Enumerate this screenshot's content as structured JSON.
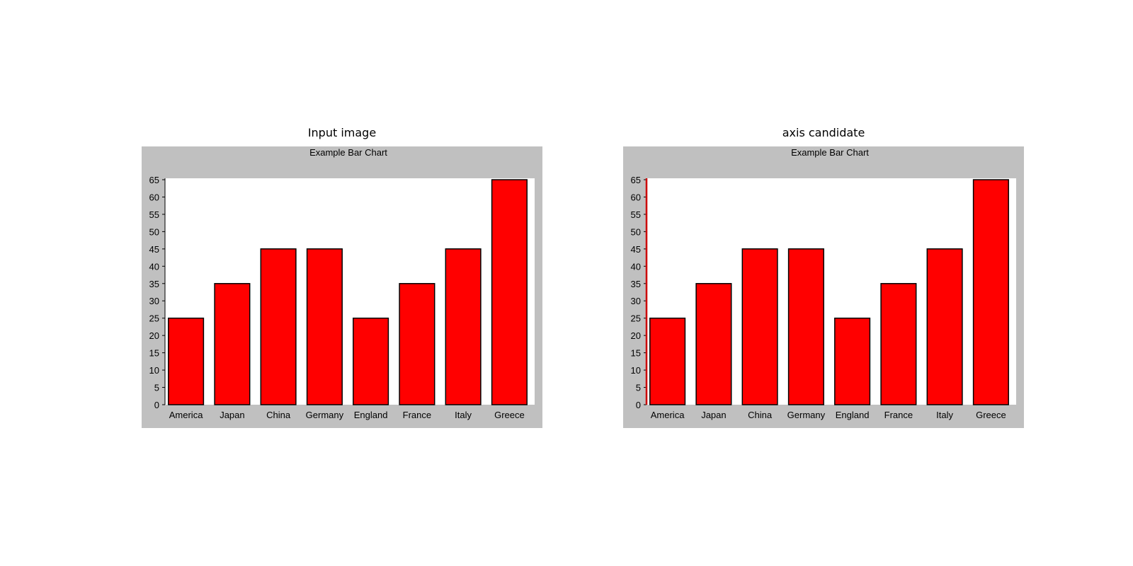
{
  "figure": {
    "panels": [
      {
        "title": "Input image",
        "highlight_axis": false
      },
      {
        "title": "axis candidate",
        "highlight_axis": true
      }
    ],
    "highlight_color": "#cc0000"
  },
  "chart_data": [
    {
      "type": "bar",
      "title": "Example Bar Chart",
      "categories": [
        "America",
        "Japan",
        "China",
        "Germany",
        "England",
        "France",
        "Italy",
        "Greece"
      ],
      "values": [
        25,
        35,
        45,
        45,
        25,
        35,
        45,
        65
      ],
      "yticks": [
        0,
        5,
        10,
        15,
        20,
        25,
        30,
        35,
        40,
        45,
        50,
        55,
        60,
        65
      ],
      "ylim": [
        0,
        65
      ],
      "xlabel": "",
      "ylabel": "",
      "grid": false,
      "bar_color": "#ff0000",
      "plot_background": "#ffffff",
      "chart_background": "#c0c0c0"
    },
    {
      "type": "bar",
      "title": "Example Bar Chart",
      "categories": [
        "America",
        "Japan",
        "China",
        "Germany",
        "England",
        "France",
        "Italy",
        "Greece"
      ],
      "values": [
        25,
        35,
        45,
        45,
        25,
        35,
        45,
        65
      ],
      "yticks": [
        0,
        5,
        10,
        15,
        20,
        25,
        30,
        35,
        40,
        45,
        50,
        55,
        60,
        65
      ],
      "ylim": [
        0,
        65
      ],
      "xlabel": "",
      "ylabel": "",
      "grid": false,
      "bar_color": "#ff0000",
      "plot_background": "#ffffff",
      "chart_background": "#c0c0c0"
    }
  ]
}
